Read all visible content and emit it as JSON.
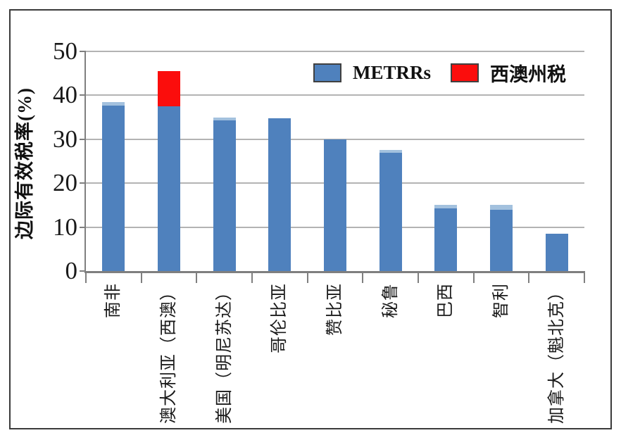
{
  "chart_data": {
    "type": "bar",
    "stacked": true,
    "title": "",
    "xlabel": "",
    "ylabel": "边际有效税率(%)",
    "ylim": [
      0,
      50
    ],
    "yticks": [
      0,
      10,
      20,
      30,
      40,
      50
    ],
    "grid": "horizontal",
    "legend_position": "top-right-inside",
    "categories": [
      "南非",
      "澳大利亚（西澳）",
      "美国（明尼苏达）",
      "哥伦比亚",
      "赞比亚",
      "秘鲁",
      "巴西",
      "智利",
      "加拿大（魁北克）"
    ],
    "series": [
      {
        "name": "METRRs",
        "color": "#4f81bd",
        "values": [
          38.5,
          37.5,
          35,
          34.7,
          30,
          27.5,
          15,
          15,
          8.5
        ]
      },
      {
        "name": "西澳州税",
        "color": "#fb0d0c",
        "values": [
          0,
          8,
          0,
          0,
          0,
          0,
          0,
          0,
          0
        ]
      }
    ],
    "bar_top_highlight": {
      "color": "#a3c1de",
      "values": [
        0.8,
        0,
        0.7,
        0,
        0,
        0.5,
        0.8,
        1.1,
        0
      ]
    }
  },
  "legend": {
    "items": [
      {
        "label": "METRRs",
        "color": "#4f81bd"
      },
      {
        "label": "西澳州税",
        "color": "#fb0d0c"
      }
    ]
  },
  "axes": {
    "y_title": "边际有效税率(%)"
  },
  "colors": {
    "bar_blue": "#4f81bd",
    "bar_red": "#fb0d0c",
    "bar_highlight": "#a3c1de",
    "gridline": "#b3b3b3",
    "axis": "#7f7f7f",
    "frame": "#3a3a3a"
  }
}
